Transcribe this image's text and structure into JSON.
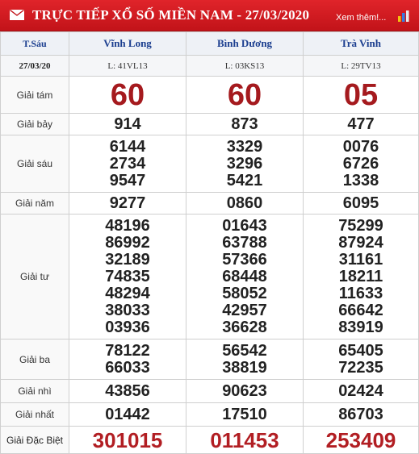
{
  "header": {
    "title": "TRỰC TIẾP XỔ SỐ MIỀN NAM - 27/03/2020",
    "more_label": "Xem thêm!...",
    "icon": "envelope-icon",
    "chart_icon": "bar-chart-icon",
    "bg_color": "#d21c22"
  },
  "table": {
    "day": "T.Sáu",
    "date": "27/03/20",
    "provinces": [
      {
        "name": "Vĩnh Long",
        "code": "L: 41VL13"
      },
      {
        "name": "Bình Dương",
        "code": "L: 03KS13"
      },
      {
        "name": "Trà Vinh",
        "code": "L: 29TV13"
      }
    ],
    "prizes": [
      {
        "label": "Giải tám",
        "results": [
          [
            "60"
          ],
          [
            "60"
          ],
          [
            "05"
          ]
        ]
      },
      {
        "label": "Giải bảy",
        "results": [
          [
            "914"
          ],
          [
            "873"
          ],
          [
            "477"
          ]
        ]
      },
      {
        "label": "Giải sáu",
        "results": [
          [
            "6144",
            "2734",
            "9547"
          ],
          [
            "3329",
            "3296",
            "5421"
          ],
          [
            "0076",
            "6726",
            "1338"
          ]
        ]
      },
      {
        "label": "Giải năm",
        "results": [
          [
            "9277"
          ],
          [
            "0860"
          ],
          [
            "6095"
          ]
        ]
      },
      {
        "label": "Giải tư",
        "results": [
          [
            "48196",
            "86992",
            "32189",
            "74835",
            "48294",
            "38033",
            "03936"
          ],
          [
            "01643",
            "63788",
            "57366",
            "68448",
            "58052",
            "42957",
            "36628"
          ],
          [
            "75299",
            "87924",
            "31161",
            "18211",
            "11633",
            "66642",
            "83919"
          ]
        ]
      },
      {
        "label": "Giải ba",
        "results": [
          [
            "78122",
            "66033"
          ],
          [
            "56542",
            "38819"
          ],
          [
            "65405",
            "72235"
          ]
        ]
      },
      {
        "label": "Giải nhì",
        "results": [
          [
            "43856"
          ],
          [
            "90623"
          ],
          [
            "02424"
          ]
        ]
      },
      {
        "label": "Giải nhất",
        "results": [
          [
            "01442"
          ],
          [
            "17510"
          ],
          [
            "86703"
          ]
        ]
      },
      {
        "label": "Giải Đặc Biệt",
        "results": [
          [
            "301015"
          ],
          [
            "011453"
          ],
          [
            "253409"
          ]
        ]
      }
    ]
  }
}
